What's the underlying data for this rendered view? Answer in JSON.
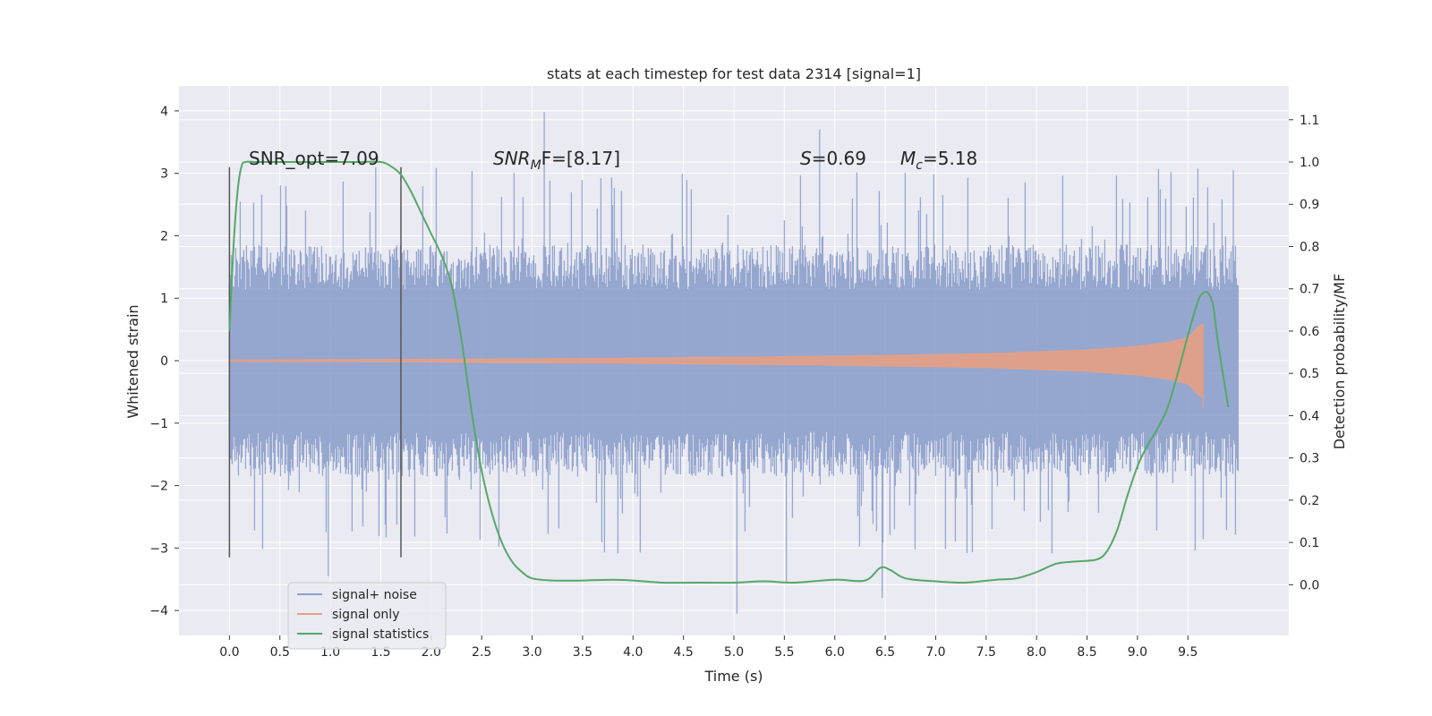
{
  "chart_data": {
    "type": "line",
    "title": "stats at each timestep for test data 2314 [signal=1]",
    "xlabel": "Time (s)",
    "ylabel": "Whitened strain",
    "y2label": "Detection probability/MF",
    "xlim": [
      -0.5,
      10.5
    ],
    "ylim": [
      -4.4,
      4.4
    ],
    "y2lim": [
      -0.12,
      1.18
    ],
    "x_ticks": [
      "0.0",
      "0.5",
      "1.0",
      "1.5",
      "2.0",
      "2.5",
      "3.0",
      "3.5",
      "4.0",
      "4.5",
      "5.0",
      "5.5",
      "6.0",
      "6.5",
      "7.0",
      "7.5",
      "8.0",
      "8.5",
      "9.0",
      "9.5"
    ],
    "y_ticks": [
      "4",
      "3",
      "2",
      "1",
      "0",
      "−1",
      "−2",
      "−3",
      "−4"
    ],
    "y_tick_values": [
      4,
      3,
      2,
      1,
      0,
      -1,
      -2,
      -3,
      -4
    ],
    "y2_ticks": [
      "1.1",
      "1.0",
      "0.9",
      "0.8",
      "0.7",
      "0.6",
      "0.5",
      "0.4",
      "0.3",
      "0.2",
      "0.1",
      "0.0"
    ],
    "y2_tick_values": [
      1.1,
      1.0,
      0.9,
      0.8,
      0.7,
      0.6,
      0.5,
      0.4,
      0.3,
      0.2,
      0.1,
      0.0
    ],
    "legend": [
      "signal+ noise",
      "signal only",
      "signal statistics"
    ],
    "legend_position": "lower-left",
    "colors": {
      "noise": "#8da0cb",
      "signal": "#e5a083",
      "stats": "#55a868",
      "vline": "#555555",
      "bg": "#eaeaf2"
    },
    "annotations": {
      "snr_opt": "SNR_opt=7.09",
      "snr_mf_sym": "SNR",
      "snr_mf_sub": "M",
      "snr_mf_rest": "F=[8.17]",
      "s_sym": "S",
      "s_rest": "=0.69",
      "mc_sym": "M",
      "mc_sub": "c",
      "mc_rest": "=5.18"
    },
    "vlines_x": [
      0.0,
      1.7
    ],
    "series": [
      {
        "name": "signal statistics",
        "axis": "right",
        "x": [
          0.0,
          0.04,
          0.08,
          0.12,
          0.16,
          0.25,
          0.4,
          0.7,
          1.0,
          1.3,
          1.5,
          1.6,
          1.7,
          1.8,
          1.9,
          2.0,
          2.1,
          2.2,
          2.3,
          2.4,
          2.5,
          2.6,
          2.7,
          2.8,
          2.9,
          3.0,
          3.2,
          3.5,
          3.8,
          4.0,
          4.3,
          4.6,
          5.0,
          5.3,
          5.6,
          6.0,
          6.3,
          6.45,
          6.55,
          6.7,
          7.0,
          7.3,
          7.6,
          7.8,
          8.0,
          8.2,
          8.4,
          8.6,
          8.7,
          8.8,
          8.9,
          9.0,
          9.1,
          9.2,
          9.3,
          9.4,
          9.5,
          9.6,
          9.65,
          9.7,
          9.75,
          9.8,
          9.9
        ],
        "values": [
          0.6,
          0.8,
          0.93,
          0.99,
          1.0,
          1.0,
          1.0,
          1.0,
          1.0,
          1.0,
          1.0,
          0.99,
          0.97,
          0.93,
          0.88,
          0.83,
          0.78,
          0.71,
          0.58,
          0.41,
          0.27,
          0.17,
          0.1,
          0.055,
          0.03,
          0.015,
          0.01,
          0.01,
          0.012,
          0.01,
          0.005,
          0.005,
          0.005,
          0.008,
          0.005,
          0.012,
          0.01,
          0.04,
          0.035,
          0.015,
          0.008,
          0.005,
          0.012,
          0.015,
          0.03,
          0.05,
          0.055,
          0.06,
          0.08,
          0.13,
          0.21,
          0.28,
          0.33,
          0.37,
          0.42,
          0.5,
          0.59,
          0.67,
          0.69,
          0.69,
          0.66,
          0.57,
          0.42
        ]
      }
    ],
    "noise_series": {
      "name": "signal+ noise",
      "axis": "left",
      "t_start": 0.0,
      "t_end": 10.0,
      "typical_amplitude": 1.2,
      "max_value": 4.0,
      "min_value": -4.05
    },
    "signal_series": {
      "name": "signal only",
      "axis": "left",
      "t_start": 0.0,
      "t_end": 9.65,
      "envelope_t": [
        0.0,
        2.0,
        4.0,
        6.0,
        7.5,
        8.5,
        9.0,
        9.3,
        9.5,
        9.6,
        9.65
      ],
      "envelope_amp": [
        0.02,
        0.03,
        0.05,
        0.08,
        0.12,
        0.18,
        0.24,
        0.3,
        0.38,
        0.55,
        0.6
      ]
    }
  }
}
